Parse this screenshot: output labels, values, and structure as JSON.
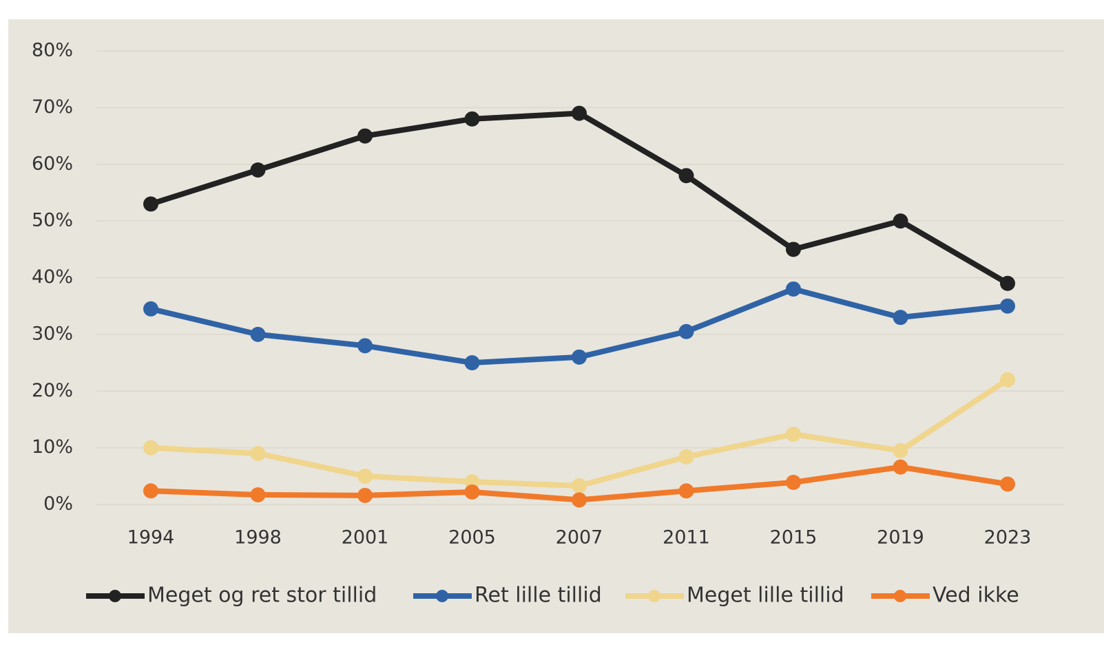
{
  "chart_data": {
    "type": "line",
    "categories": [
      "1994",
      "1998",
      "2001",
      "2005",
      "2007",
      "2011",
      "2015",
      "2019",
      "2023"
    ],
    "series": [
      {
        "name": "Meget og ret stor tillid",
        "color": "#222222",
        "values": [
          53,
          59,
          65,
          68,
          69,
          58,
          45,
          50,
          39
        ]
      },
      {
        "name": "Ret lille tillid",
        "color": "#2f63a6",
        "values": [
          34.5,
          30,
          28,
          25,
          26,
          30.5,
          38,
          33,
          35
        ]
      },
      {
        "name": "Meget lille tillid",
        "color": "#f0d58c",
        "values": [
          10,
          9,
          5,
          4,
          3.3,
          8.4,
          12.4,
          9.5,
          22
        ]
      },
      {
        "name": "Ved ikke",
        "color": "#f07a2a",
        "values": [
          2.4,
          1.7,
          1.6,
          2.2,
          0.8,
          2.4,
          3.9,
          6.6,
          3.6
        ]
      }
    ],
    "ylim": [
      0,
      80
    ],
    "yticks": [
      {
        "value": 0,
        "label": "0%"
      },
      {
        "value": 10,
        "label": "10%"
      },
      {
        "value": 20,
        "label": "20%"
      },
      {
        "value": 30,
        "label": "30%"
      },
      {
        "value": 40,
        "label": "40%"
      },
      {
        "value": 50,
        "label": "50%"
      },
      {
        "value": 60,
        "label": "60%"
      },
      {
        "value": 70,
        "label": "70%"
      },
      {
        "value": 80,
        "label": "80%"
      }
    ],
    "grid": true,
    "legend": "bottom"
  }
}
